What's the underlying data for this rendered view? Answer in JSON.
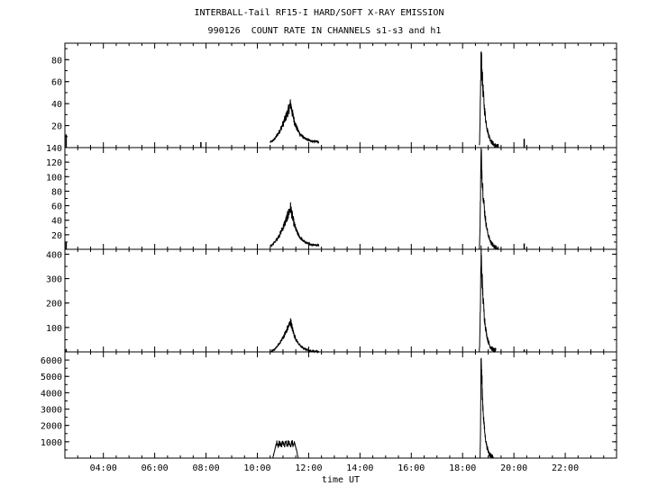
{
  "title": "INTERBALL-Tail RF15-I HARD/SOFT X-RAY EMISSION",
  "subtitle": "990126  COUNT RATE IN CHANNELS s1-s3 and h1",
  "xlabel": "time UT",
  "chart_data": {
    "type": "line",
    "title": "INTERBALL-Tail RF15-I HARD/SOFT X-RAY EMISSION",
    "subtitle": "990126  COUNT RATE IN CHANNELS s1-s3 and h1",
    "xlabel": "time UT",
    "xlim": [
      2.5,
      24.0
    ],
    "xticks": [
      "04:00",
      "06:00",
      "08:00",
      "10:00",
      "12:00",
      "14:00",
      "16:00",
      "18:00",
      "20:00",
      "22:00"
    ],
    "xtick_values": [
      4,
      6,
      8,
      10,
      12,
      14,
      16,
      18,
      20,
      22
    ],
    "grid": false,
    "panels": [
      {
        "ylim": [
          0,
          95
        ],
        "yticks": [
          20,
          40,
          60,
          80
        ],
        "events": [
          {
            "start": 10.5,
            "peak_time": 11.3,
            "end": 12.4,
            "peak": 40,
            "base": 5
          },
          {
            "start": 18.65,
            "peak_time": 18.72,
            "end": 19.4,
            "peak": 88,
            "base": 0
          }
        ],
        "spikes": [
          [
            2.55,
            12
          ],
          [
            7.8,
            5
          ],
          [
            20.4,
            8
          ]
        ]
      },
      {
        "ylim": [
          0,
          140
        ],
        "yticks": [
          20,
          40,
          60,
          80,
          100,
          120,
          140
        ],
        "events": [
          {
            "start": 10.5,
            "peak_time": 11.3,
            "end": 12.4,
            "peak": 58,
            "base": 5
          },
          {
            "start": 18.65,
            "peak_time": 18.72,
            "end": 19.4,
            "peak": 135,
            "base": 0
          }
        ],
        "spikes": [
          [
            2.55,
            10
          ],
          [
            20.4,
            8
          ]
        ]
      },
      {
        "ylim": [
          0,
          420
        ],
        "yticks": [
          100,
          200,
          300,
          400
        ],
        "events": [
          {
            "start": 10.5,
            "peak_time": 11.3,
            "end": 12.4,
            "peak": 125,
            "base": 0
          },
          {
            "start": 18.65,
            "peak_time": 18.72,
            "end": 19.3,
            "peak": 410,
            "base": 0
          }
        ],
        "spikes": [
          [
            2.55,
            12
          ],
          [
            20.4,
            10
          ]
        ]
      },
      {
        "ylim": [
          0,
          6500
        ],
        "yticks": [
          1000,
          2000,
          3000,
          4000,
          5000,
          6000
        ],
        "events": [
          {
            "start": 10.6,
            "peak_time": 11.0,
            "end": 11.6,
            "peak": 950,
            "base": 0,
            "shape": "plateau"
          },
          {
            "start": 18.68,
            "peak_time": 18.72,
            "end": 19.2,
            "peak": 6400,
            "base": 0
          }
        ],
        "spikes": []
      }
    ]
  }
}
